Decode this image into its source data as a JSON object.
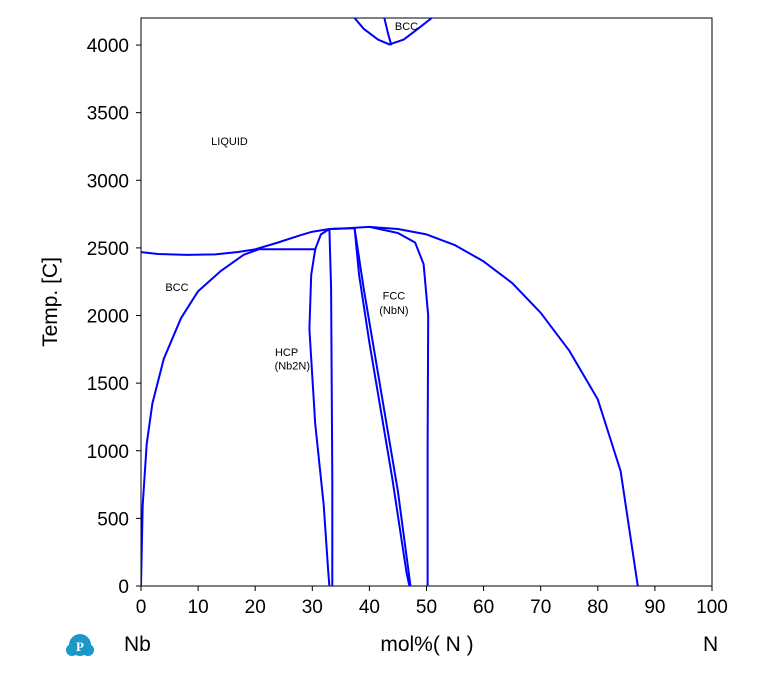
{
  "chart_data": {
    "type": "line",
    "subtype": "phase-diagram",
    "ylabel": "Temp.  [C]",
    "xlabel": "mol%(  N  )",
    "x_left_label": "Nb",
    "x_right_label": "N",
    "xlim": [
      0,
      100
    ],
    "ylim": [
      0,
      4200
    ],
    "x_ticks": [
      0,
      10,
      20,
      30,
      40,
      50,
      60,
      70,
      80,
      90,
      100
    ],
    "y_ticks": [
      0,
      500,
      1000,
      1500,
      2000,
      2500,
      3000,
      3500,
      4000
    ],
    "grid": false,
    "line_color": "#0000ff",
    "phase_labels": [
      {
        "text": "LIQUID",
        "x": 15.5,
        "y": 3260
      },
      {
        "text": "BCC",
        "x": 6.3,
        "y": 2180
      },
      {
        "text": "BCC",
        "x": 46.5,
        "y": 4110
      },
      {
        "text": "FCC",
        "x": 44.3,
        "y": 2120
      },
      {
        "text": "(NbN)",
        "x": 44.3,
        "y": 2010
      },
      {
        "text": "HCP",
        "x": 25.5,
        "y": 1700
      },
      {
        "text": "(Nb2N)",
        "x": 26.5,
        "y": 1600
      }
    ],
    "series": [
      {
        "points": [
          [
            0,
            2469
          ],
          [
            3,
            2455
          ],
          [
            8,
            2448
          ],
          [
            13,
            2452
          ],
          [
            17,
            2470
          ],
          [
            20,
            2490
          ],
          [
            24,
            2540
          ],
          [
            28,
            2595
          ],
          [
            30,
            2620
          ],
          [
            33,
            2640
          ]
        ]
      },
      {
        "points": [
          [
            33,
            2640
          ],
          [
            36,
            2645
          ],
          [
            40,
            2655
          ],
          [
            45,
            2640
          ],
          [
            50,
            2600
          ],
          [
            55,
            2520
          ],
          [
            60,
            2400
          ],
          [
            65,
            2240
          ],
          [
            70,
            2020
          ],
          [
            75,
            1740
          ],
          [
            80,
            1380
          ],
          [
            84,
            850
          ],
          [
            87,
            0
          ]
        ]
      },
      {
        "points": [
          [
            0,
            0
          ],
          [
            0.3,
            600
          ],
          [
            1,
            1050
          ],
          [
            2,
            1350
          ],
          [
            4,
            1680
          ],
          [
            7,
            1980
          ],
          [
            10,
            2180
          ],
          [
            14,
            2330
          ],
          [
            18,
            2450
          ],
          [
            21,
            2495
          ]
        ]
      },
      {
        "points": [
          [
            21,
            2490
          ],
          [
            30.5,
            2490
          ]
        ]
      },
      {
        "points": [
          [
            30.5,
            2490
          ],
          [
            29.8,
            2300
          ],
          [
            29.5,
            1900
          ],
          [
            30.5,
            1200
          ],
          [
            32,
            600
          ],
          [
            32.8,
            100
          ],
          [
            33,
            0
          ]
        ]
      },
      {
        "points": [
          [
            30.5,
            2490
          ],
          [
            31.5,
            2600
          ],
          [
            33,
            2640
          ]
        ]
      },
      {
        "points": [
          [
            33,
            2640
          ],
          [
            33.3,
            2200
          ],
          [
            33.4,
            1500
          ],
          [
            33.5,
            800
          ],
          [
            33.5,
            0
          ]
        ]
      },
      {
        "points": [
          [
            33,
            2640
          ],
          [
            37.4,
            2645
          ]
        ]
      },
      {
        "points": [
          [
            37.4,
            2645
          ],
          [
            39,
            2200
          ],
          [
            41,
            1700
          ],
          [
            43,
            1200
          ],
          [
            45,
            700
          ],
          [
            47.2,
            0
          ]
        ]
      },
      {
        "points": [
          [
            37.4,
            2645
          ],
          [
            38.2,
            2300
          ],
          [
            40,
            1800
          ],
          [
            42,
            1300
          ],
          [
            44,
            800
          ],
          [
            46.5,
            100
          ],
          [
            47,
            0
          ]
        ]
      },
      {
        "points": [
          [
            40,
            2655
          ],
          [
            45,
            2610
          ],
          [
            48,
            2540
          ],
          [
            49.5,
            2380
          ],
          [
            50.3,
            2000
          ],
          [
            50.2,
            1000
          ],
          [
            50.2,
            0
          ]
        ]
      },
      {
        "points": [
          [
            37,
            4220
          ],
          [
            39,
            4120
          ],
          [
            41.5,
            4040
          ],
          [
            43.5,
            4005
          ]
        ]
      },
      {
        "points": [
          [
            42.5,
            4220
          ],
          [
            43.3,
            4080
          ],
          [
            43.8,
            4005
          ]
        ]
      },
      {
        "points": [
          [
            43.5,
            4005
          ],
          [
            46,
            4040
          ],
          [
            48.5,
            4120
          ],
          [
            51.5,
            4220
          ]
        ]
      }
    ]
  },
  "branding": {
    "logo_letter": "P",
    "logo_color": "#1a98c8"
  }
}
